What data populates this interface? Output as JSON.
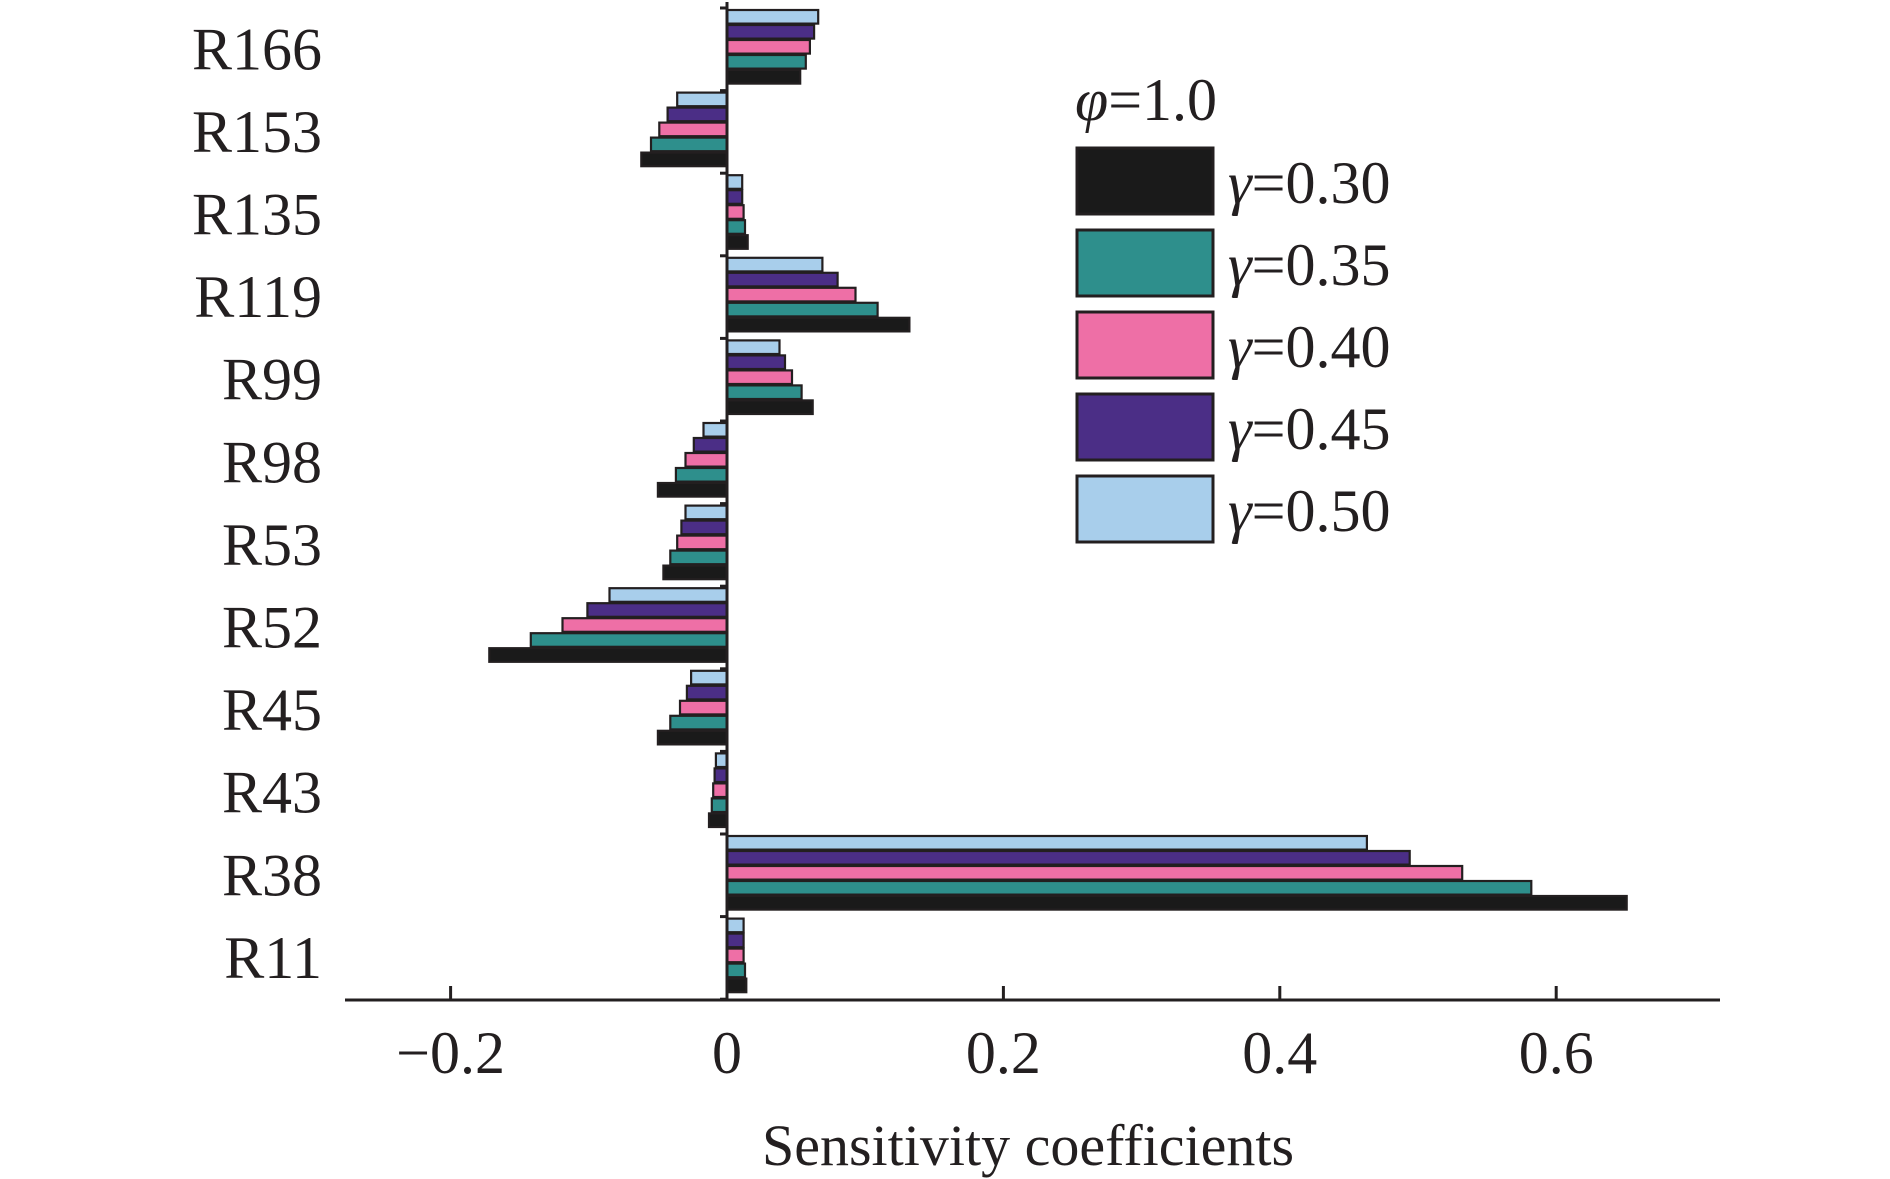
{
  "chart_data": {
    "type": "bar",
    "orientation": "horizontal",
    "categories": [
      "R166",
      "R153",
      "R135",
      "R119",
      "R99",
      "R98",
      "R53",
      "R52",
      "R45",
      "R43",
      "R38",
      "R11"
    ],
    "series": [
      {
        "name": "γ=0.30",
        "color": "#1a1a1a",
        "values": [
          0.053,
          -0.062,
          0.015,
          0.132,
          0.062,
          -0.05,
          -0.046,
          -0.172,
          -0.05,
          -0.013,
          0.651,
          0.014
        ]
      },
      {
        "name": "γ=0.35",
        "color": "#2e8f8c",
        "values": [
          0.057,
          -0.055,
          0.013,
          0.109,
          0.054,
          -0.037,
          -0.041,
          -0.142,
          -0.041,
          -0.011,
          0.582,
          0.013
        ]
      },
      {
        "name": "γ=0.40",
        "color": "#ee6fa6",
        "values": [
          0.06,
          -0.049,
          0.012,
          0.093,
          0.047,
          -0.03,
          -0.036,
          -0.119,
          -0.034,
          -0.01,
          0.532,
          0.012
        ]
      },
      {
        "name": "γ=0.45",
        "color": "#4b2e86",
        "values": [
          0.063,
          -0.043,
          0.011,
          0.08,
          0.042,
          -0.024,
          -0.033,
          -0.101,
          -0.029,
          -0.009,
          0.494,
          0.012
        ]
      },
      {
        "name": "γ=0.50",
        "color": "#a8ceeb",
        "values": [
          0.066,
          -0.036,
          0.011,
          0.069,
          0.038,
          -0.017,
          -0.03,
          -0.085,
          -0.026,
          -0.008,
          0.463,
          0.012
        ]
      }
    ],
    "xlabel": "Sensitivity coefficients",
    "ylabel": "",
    "xlim": [
      -0.28,
      0.72
    ],
    "xticks": [
      -0.2,
      0,
      0.2,
      0.4,
      0.6
    ],
    "xtick_labels": [
      "−0.2",
      "0",
      "0.2",
      "0.4",
      "0.6"
    ],
    "grid": false,
    "legend": {
      "title_symbol": "φ",
      "title_value": "=1.0",
      "symbol": "γ",
      "entries": [
        "=0.30",
        "=0.35",
        "=0.40",
        "=0.45",
        "=0.50"
      ],
      "placement": "top-right"
    }
  }
}
